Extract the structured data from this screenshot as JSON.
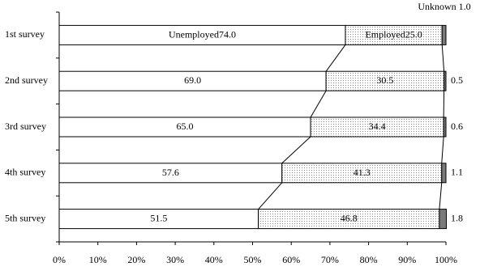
{
  "chart_data": {
    "type": "stacked-bar-horizontal",
    "categories": [
      "1st survey",
      "2nd survey",
      "3rd survey",
      "4th survey",
      "5th survey"
    ],
    "series": [
      {
        "name": "Unemployed",
        "color": "#ffffff",
        "values": [
          74.0,
          69.0,
          65.0,
          57.6,
          51.5
        ],
        "value_labels": [
          "74.0",
          "69.0",
          "65.0",
          "57.6",
          "51.5"
        ]
      },
      {
        "name": "Employed",
        "color": "#e4e4e4",
        "values": [
          25.0,
          30.5,
          34.4,
          41.3,
          46.8
        ],
        "value_labels": [
          "25.0",
          "30.5",
          "34.4",
          "41.3",
          "46.8"
        ]
      },
      {
        "name": "Unknown",
        "color": "#7a7a7a",
        "values": [
          1.0,
          0.5,
          0.6,
          1.1,
          1.8
        ],
        "value_labels": [
          "1.0",
          "0.5",
          "0.6",
          "1.1",
          "1.8"
        ]
      }
    ],
    "xlim": [
      0,
      100
    ],
    "xticks": [
      {
        "value": 0,
        "label": "0%"
      },
      {
        "value": 10,
        "label": "10%"
      },
      {
        "value": 20,
        "label": "20%"
      },
      {
        "value": 30,
        "label": "30%"
      },
      {
        "value": 40,
        "label": "40%"
      },
      {
        "value": 50,
        "label": "50%"
      },
      {
        "value": 60,
        "label": "60%"
      },
      {
        "value": 70,
        "label": "70%"
      },
      {
        "value": 80,
        "label": "80%"
      },
      {
        "value": 90,
        "label": "90%"
      },
      {
        "value": 100,
        "label": "100%"
      }
    ]
  }
}
